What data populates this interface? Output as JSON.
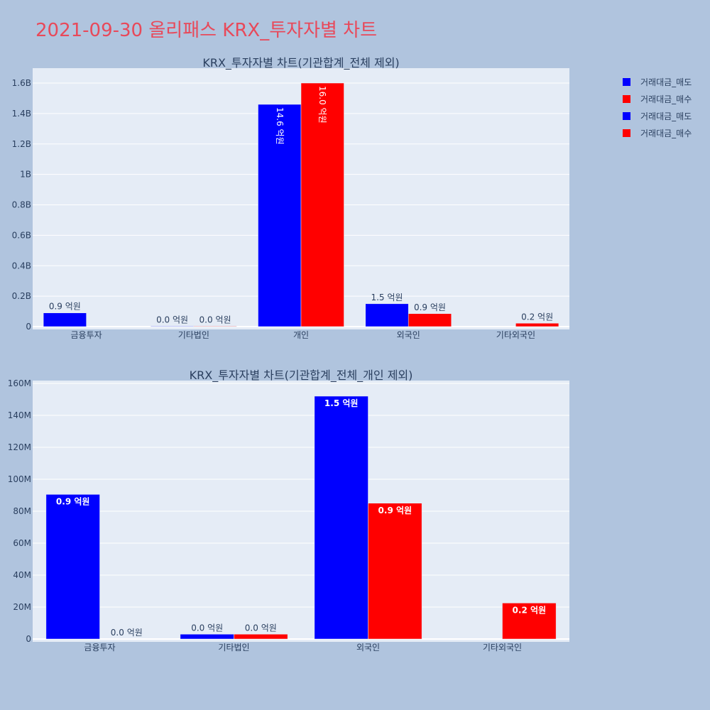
{
  "page_title": "2021-09-30 올리패스 KRX_투자자별 차트",
  "legend": [
    {
      "label": "거래대금_매도",
      "color": "#0000ff"
    },
    {
      "label": "거래대금_매수",
      "color": "#ff0000"
    },
    {
      "label": "거래대금_매도",
      "color": "#0000ff"
    },
    {
      "label": "거래대금_매수",
      "color": "#ff0000"
    }
  ],
  "chart_data": [
    {
      "type": "bar",
      "title": "KRX_투자자별 차트(기관합계_전체 제외)",
      "categories": [
        "금융투자",
        "기타법인",
        "개인",
        "외국인",
        "기타외국인"
      ],
      "ylim": [
        0,
        1700000000
      ],
      "yticks": [
        0,
        200000000,
        400000000,
        600000000,
        800000000,
        1000000000,
        1200000000,
        1400000000,
        1600000000
      ],
      "ytick_labels": [
        "0",
        "0.2B",
        "0.4B",
        "0.6B",
        "0.8B",
        "1B",
        "1.2B",
        "1.4B",
        "1.6B"
      ],
      "grid": true,
      "series": [
        {
          "name": "거래대금_매도",
          "color": "#0000ff",
          "values": [
            90000000,
            3000000,
            1460000000,
            150000000,
            0
          ],
          "labels": [
            "0.9 억원",
            "0.0 억원",
            "14.6 억원",
            "1.5 억원",
            ""
          ]
        },
        {
          "name": "거래대금_매수",
          "color": "#ff0000",
          "values": [
            0,
            3000000,
            1600000000,
            85000000,
            22000000
          ],
          "labels": [
            "",
            "0.0 억원",
            "16.0 억원",
            "0.9 억원",
            "0.2 억원"
          ]
        }
      ]
    },
    {
      "type": "bar",
      "title": "KRX_투자자별 차트(기관합계_전체_개인 제외)",
      "categories": [
        "금융투자",
        "기타법인",
        "외국인",
        "기타외국인"
      ],
      "ylim": [
        0,
        160000000
      ],
      "yticks": [
        0,
        20000000,
        40000000,
        60000000,
        80000000,
        100000000,
        120000000,
        140000000,
        160000000
      ],
      "ytick_labels": [
        "0",
        "20M",
        "40M",
        "60M",
        "80M",
        "100M",
        "120M",
        "140M",
        "160M"
      ],
      "grid": true,
      "series": [
        {
          "name": "거래대금_매도",
          "color": "#0000ff",
          "values": [
            90500000,
            3000000,
            152000000,
            0
          ],
          "labels": [
            "0.9 억원",
            "0.0 억원",
            "1.5 억원",
            ""
          ]
        },
        {
          "name": "거래대금_매수",
          "color": "#ff0000",
          "values": [
            0,
            3000000,
            85000000,
            22500000
          ],
          "labels": [
            "0.0 억원",
            "0.0 억원",
            "0.9 억원",
            "0.2 억원"
          ]
        }
      ]
    }
  ]
}
